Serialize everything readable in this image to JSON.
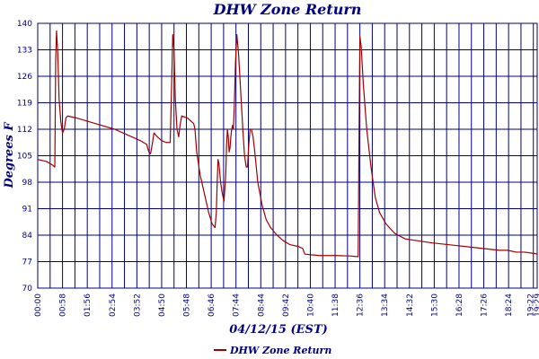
{
  "chart_data": {
    "type": "line",
    "title": "DHW Zone Return",
    "xlabel": "04/12/15 (EST)",
    "ylabel": "Degrees F",
    "ylim": [
      70,
      140
    ],
    "y_ticks": [
      "70",
      "77",
      "84",
      "91",
      "98",
      "105",
      "112",
      "119",
      "126",
      "133",
      "140"
    ],
    "x_ticks": [
      "00:00",
      "00:58",
      "01:56",
      "02:54",
      "03:52",
      "04:50",
      "05:48",
      "06:46",
      "07:44",
      "08:44",
      "09:42",
      "10:40",
      "11:38",
      "12:36",
      "13:34",
      "14:32",
      "15:30",
      "16:28",
      "17:26",
      "18:24",
      "19:22",
      "19:29"
    ],
    "x_range_minutes": [
      0,
      1169
    ],
    "grid": true,
    "legend_position": "bottom",
    "colors": {
      "series": "#a00000",
      "grid": "#000080",
      "text": "#000080"
    },
    "series": [
      {
        "name": "DHW Zone Return",
        "points": [
          [
            0,
            104
          ],
          [
            20,
            103.5
          ],
          [
            35,
            102.5
          ],
          [
            40,
            102
          ],
          [
            42,
            130
          ],
          [
            44,
            138
          ],
          [
            47,
            132
          ],
          [
            50,
            120
          ],
          [
            54,
            114
          ],
          [
            58,
            111
          ],
          [
            62,
            112
          ],
          [
            66,
            115
          ],
          [
            70,
            115.5
          ],
          [
            90,
            115
          ],
          [
            120,
            114
          ],
          [
            150,
            113
          ],
          [
            180,
            112
          ],
          [
            200,
            111
          ],
          [
            220,
            110
          ],
          [
            240,
            109
          ],
          [
            255,
            108
          ],
          [
            260,
            106
          ],
          [
            264,
            105.5
          ],
          [
            268,
            108
          ],
          [
            272,
            111
          ],
          [
            280,
            110
          ],
          [
            290,
            109
          ],
          [
            300,
            108.5
          ],
          [
            310,
            108.5
          ],
          [
            313,
            122
          ],
          [
            316,
            137
          ],
          [
            319,
            133
          ],
          [
            322,
            120
          ],
          [
            326,
            112
          ],
          [
            330,
            110
          ],
          [
            333,
            113
          ],
          [
            337,
            115.5
          ],
          [
            350,
            115
          ],
          [
            360,
            114
          ],
          [
            365,
            113.5
          ],
          [
            368,
            112
          ],
          [
            372,
            106
          ],
          [
            380,
            100
          ],
          [
            390,
            95
          ],
          [
            400,
            90
          ],
          [
            408,
            87
          ],
          [
            415,
            86
          ],
          [
            418,
            90
          ],
          [
            420,
            98
          ],
          [
            422,
            104
          ],
          [
            424,
            103
          ],
          [
            428,
            98
          ],
          [
            432,
            95
          ],
          [
            436,
            93
          ],
          [
            440,
            100
          ],
          [
            442,
            108
          ],
          [
            444,
            112
          ],
          [
            446,
            110
          ],
          [
            448,
            106
          ],
          [
            450,
            107
          ],
          [
            452,
            110
          ],
          [
            454,
            112
          ],
          [
            456,
            113
          ],
          [
            458,
            112
          ],
          [
            460,
            118
          ],
          [
            463,
            130
          ],
          [
            466,
            137
          ],
          [
            470,
            132
          ],
          [
            475,
            122
          ],
          [
            480,
            112
          ],
          [
            484,
            105
          ],
          [
            488,
            102
          ],
          [
            491,
            102
          ],
          [
            494,
            108
          ],
          [
            497,
            112
          ],
          [
            500,
            112
          ],
          [
            504,
            110
          ],
          [
            508,
            106
          ],
          [
            515,
            98
          ],
          [
            525,
            92
          ],
          [
            535,
            88
          ],
          [
            545,
            86
          ],
          [
            560,
            84
          ],
          [
            575,
            82.5
          ],
          [
            590,
            81.5
          ],
          [
            610,
            81
          ],
          [
            620,
            80.5
          ],
          [
            625,
            79
          ],
          [
            640,
            78.8
          ],
          [
            660,
            78.6
          ],
          [
            700,
            78.6
          ],
          [
            730,
            78.5
          ],
          [
            750,
            78.3
          ],
          [
            752,
            110
          ],
          [
            754,
            136.5
          ],
          [
            757,
            134
          ],
          [
            762,
            124
          ],
          [
            770,
            112
          ],
          [
            780,
            102
          ],
          [
            790,
            94
          ],
          [
            800,
            90
          ],
          [
            815,
            87
          ],
          [
            835,
            84.5
          ],
          [
            860,
            83
          ],
          [
            890,
            82.5
          ],
          [
            920,
            82
          ],
          [
            960,
            81.5
          ],
          [
            1000,
            81
          ],
          [
            1040,
            80.5
          ],
          [
            1080,
            80
          ],
          [
            1100,
            80
          ],
          [
            1120,
            79.5
          ],
          [
            1140,
            79.5
          ],
          [
            1160,
            79.2
          ],
          [
            1169,
            79
          ]
        ]
      }
    ]
  }
}
